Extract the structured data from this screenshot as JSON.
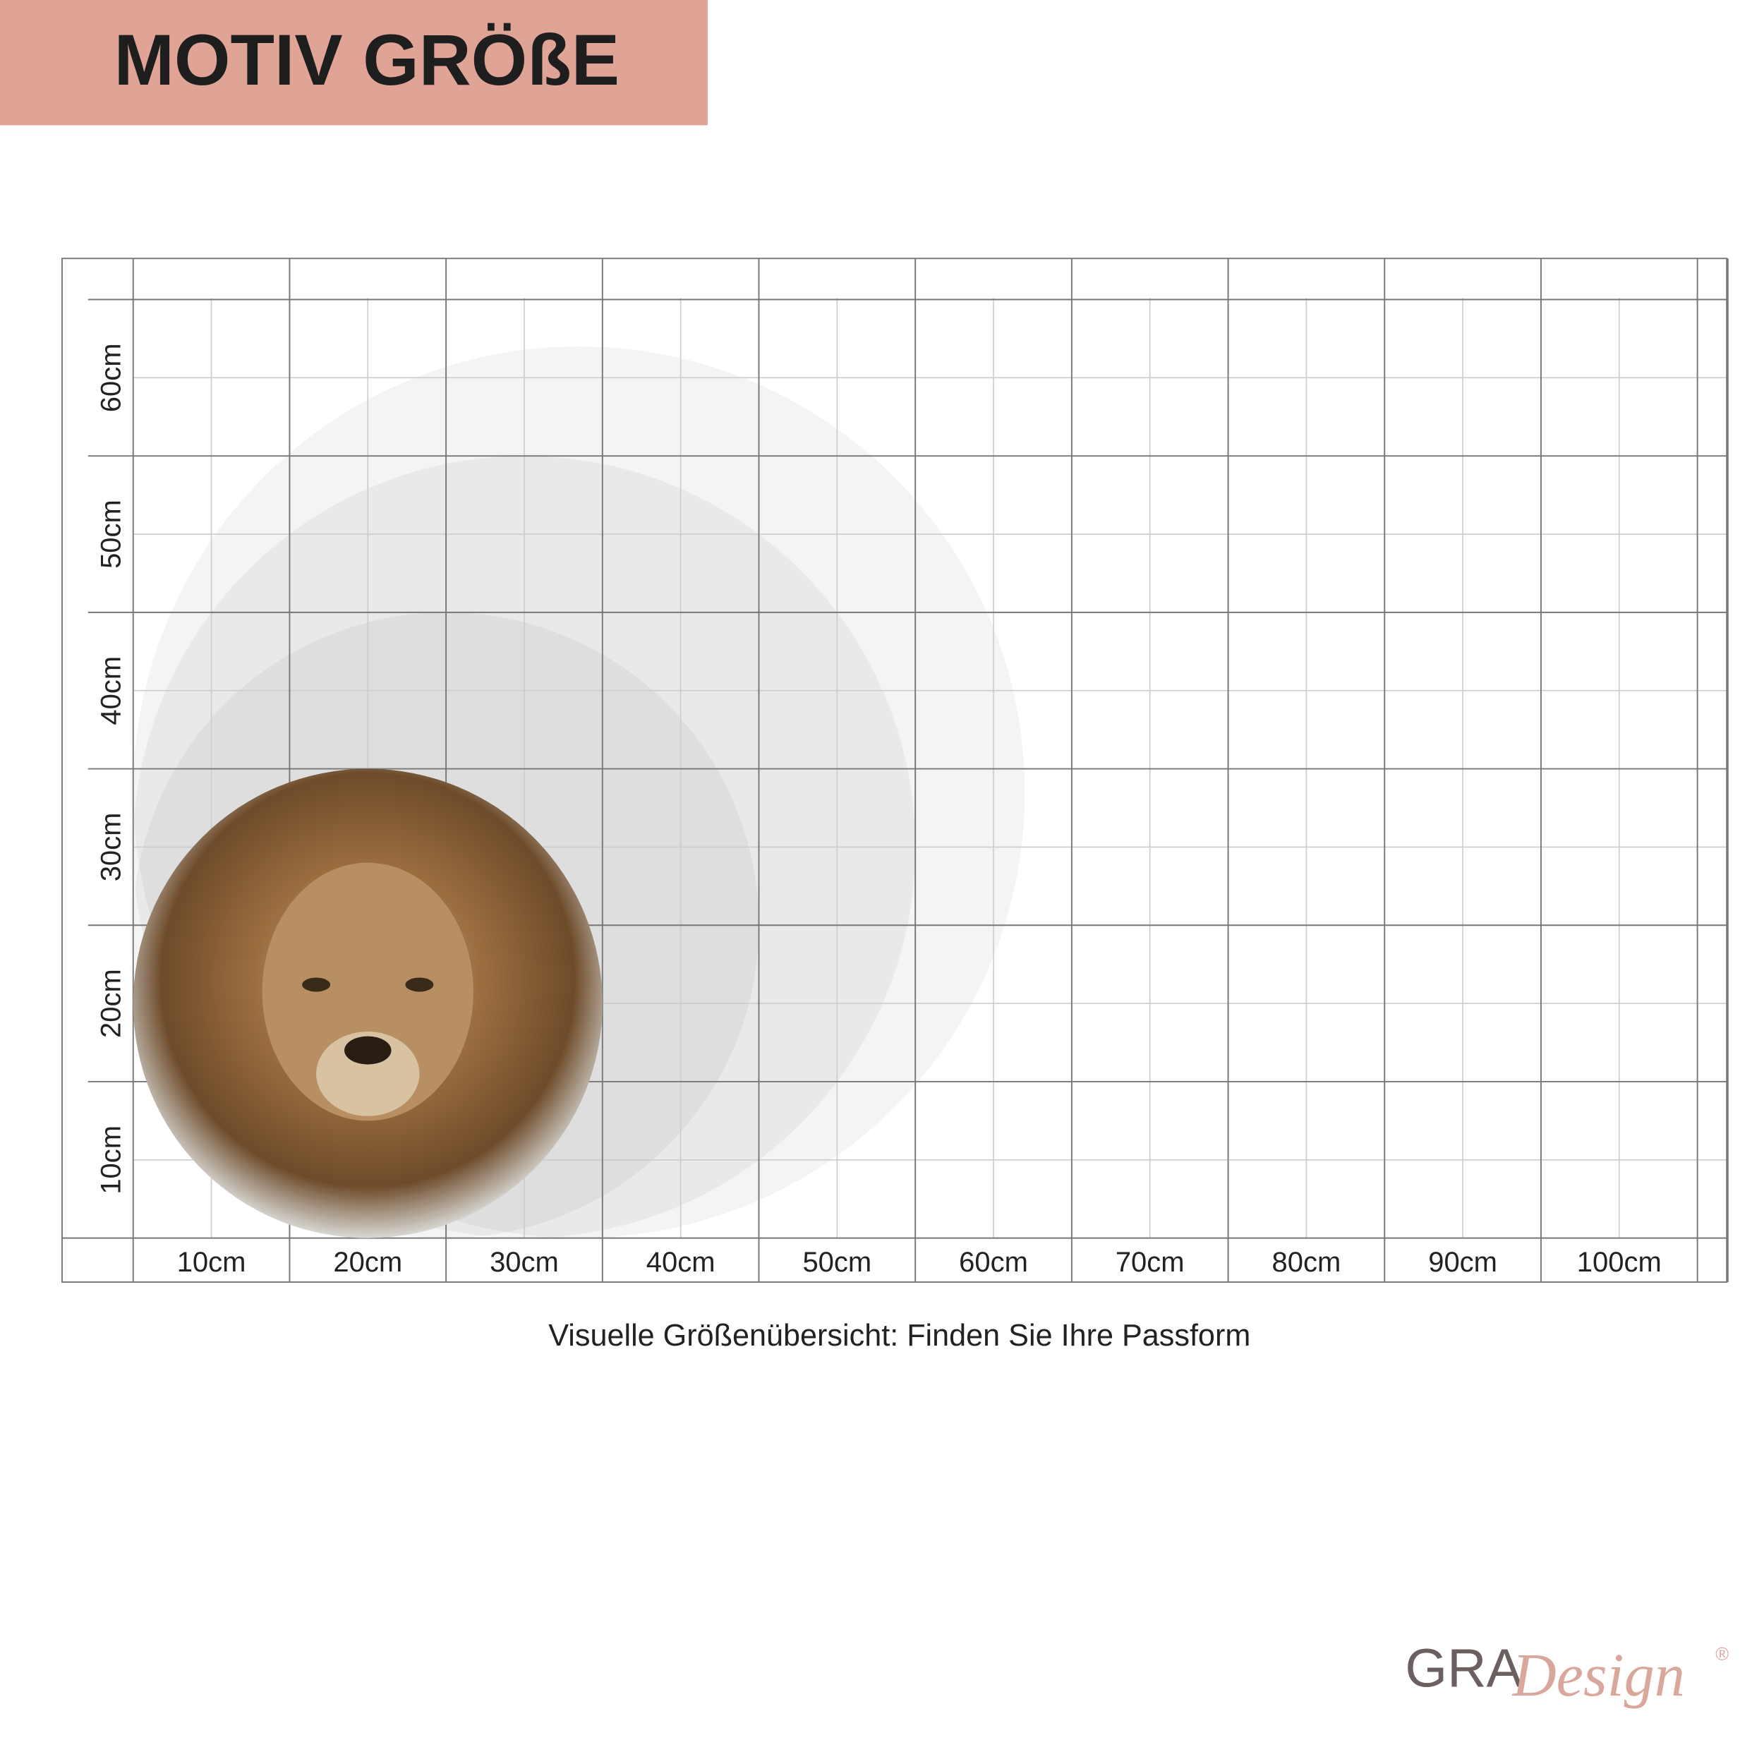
{
  "header": {
    "title": "MOTIV GRÖßE"
  },
  "grid": {
    "x_labels": [
      "10cm",
      "20cm",
      "30cm",
      "40cm",
      "50cm",
      "60cm",
      "70cm",
      "80cm",
      "90cm",
      "100cm"
    ],
    "y_labels": [
      "10cm",
      "20cm",
      "30cm",
      "40cm",
      "50cm",
      "60cm"
    ],
    "motif_diameters_cm": [
      57,
      50,
      40,
      30
    ]
  },
  "caption": "Visuelle Größenübersicht: Finden Sie Ihre Passform",
  "logo": {
    "brand": "GRA",
    "script": "Design",
    "mark": "®"
  }
}
